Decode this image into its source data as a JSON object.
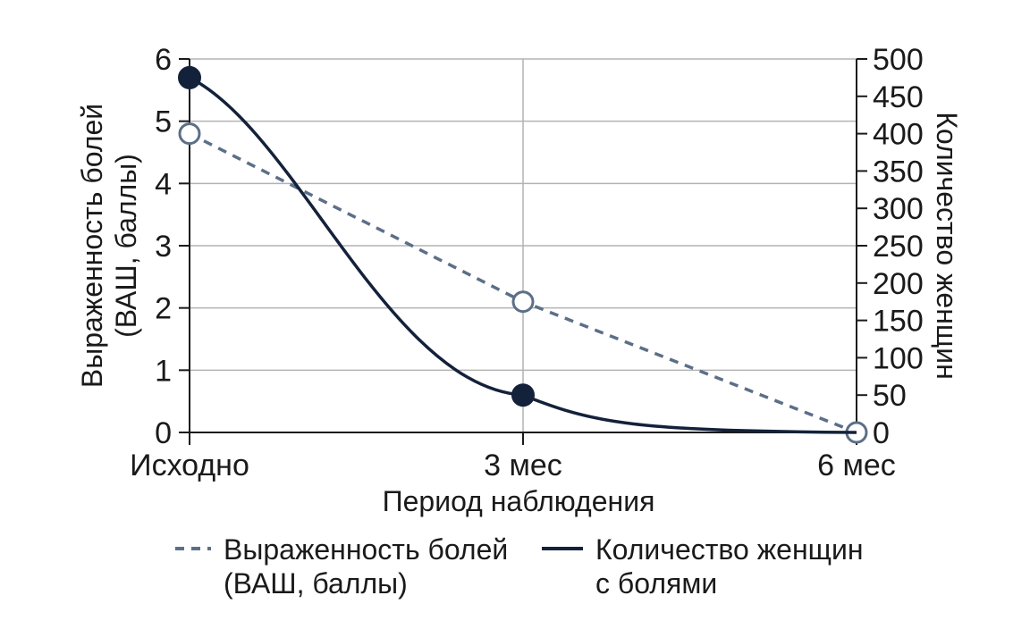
{
  "chart_data": {
    "type": "line",
    "xlabel": "Период наблюдения",
    "ylabel_left_line1": "Выраженность болей",
    "ylabel_left_line2": "(ВАШ, баллы)",
    "ylabel_right": "Количество женщин",
    "categories": [
      "Исходно",
      "3 мес",
      "6 мес"
    ],
    "y_left": {
      "ylim": [
        0,
        6
      ],
      "ticks": [
        "0",
        "1",
        "2",
        "3",
        "4",
        "5",
        "6"
      ]
    },
    "y_right": {
      "ylim": [
        0,
        500
      ],
      "ticks": [
        "0",
        "50",
        "100",
        "150",
        "200",
        "250",
        "300",
        "350",
        "400",
        "450",
        "500"
      ]
    },
    "grid": true,
    "series": [
      {
        "name_line1": "Выраженность болей",
        "name_line2": "(ВАШ, баллы)",
        "axis": "left",
        "style": "dashed",
        "marker": "open-circle",
        "color": "#5c6f88",
        "values": [
          4.8,
          2.1,
          0
        ]
      },
      {
        "name_line1": "Количество женщин",
        "name_line2": "с болями",
        "axis": "right",
        "style": "solid",
        "marker": "filled-circle",
        "color": "#14213a",
        "values": [
          475,
          50,
          0
        ]
      }
    ],
    "legend_position": "bottom"
  }
}
